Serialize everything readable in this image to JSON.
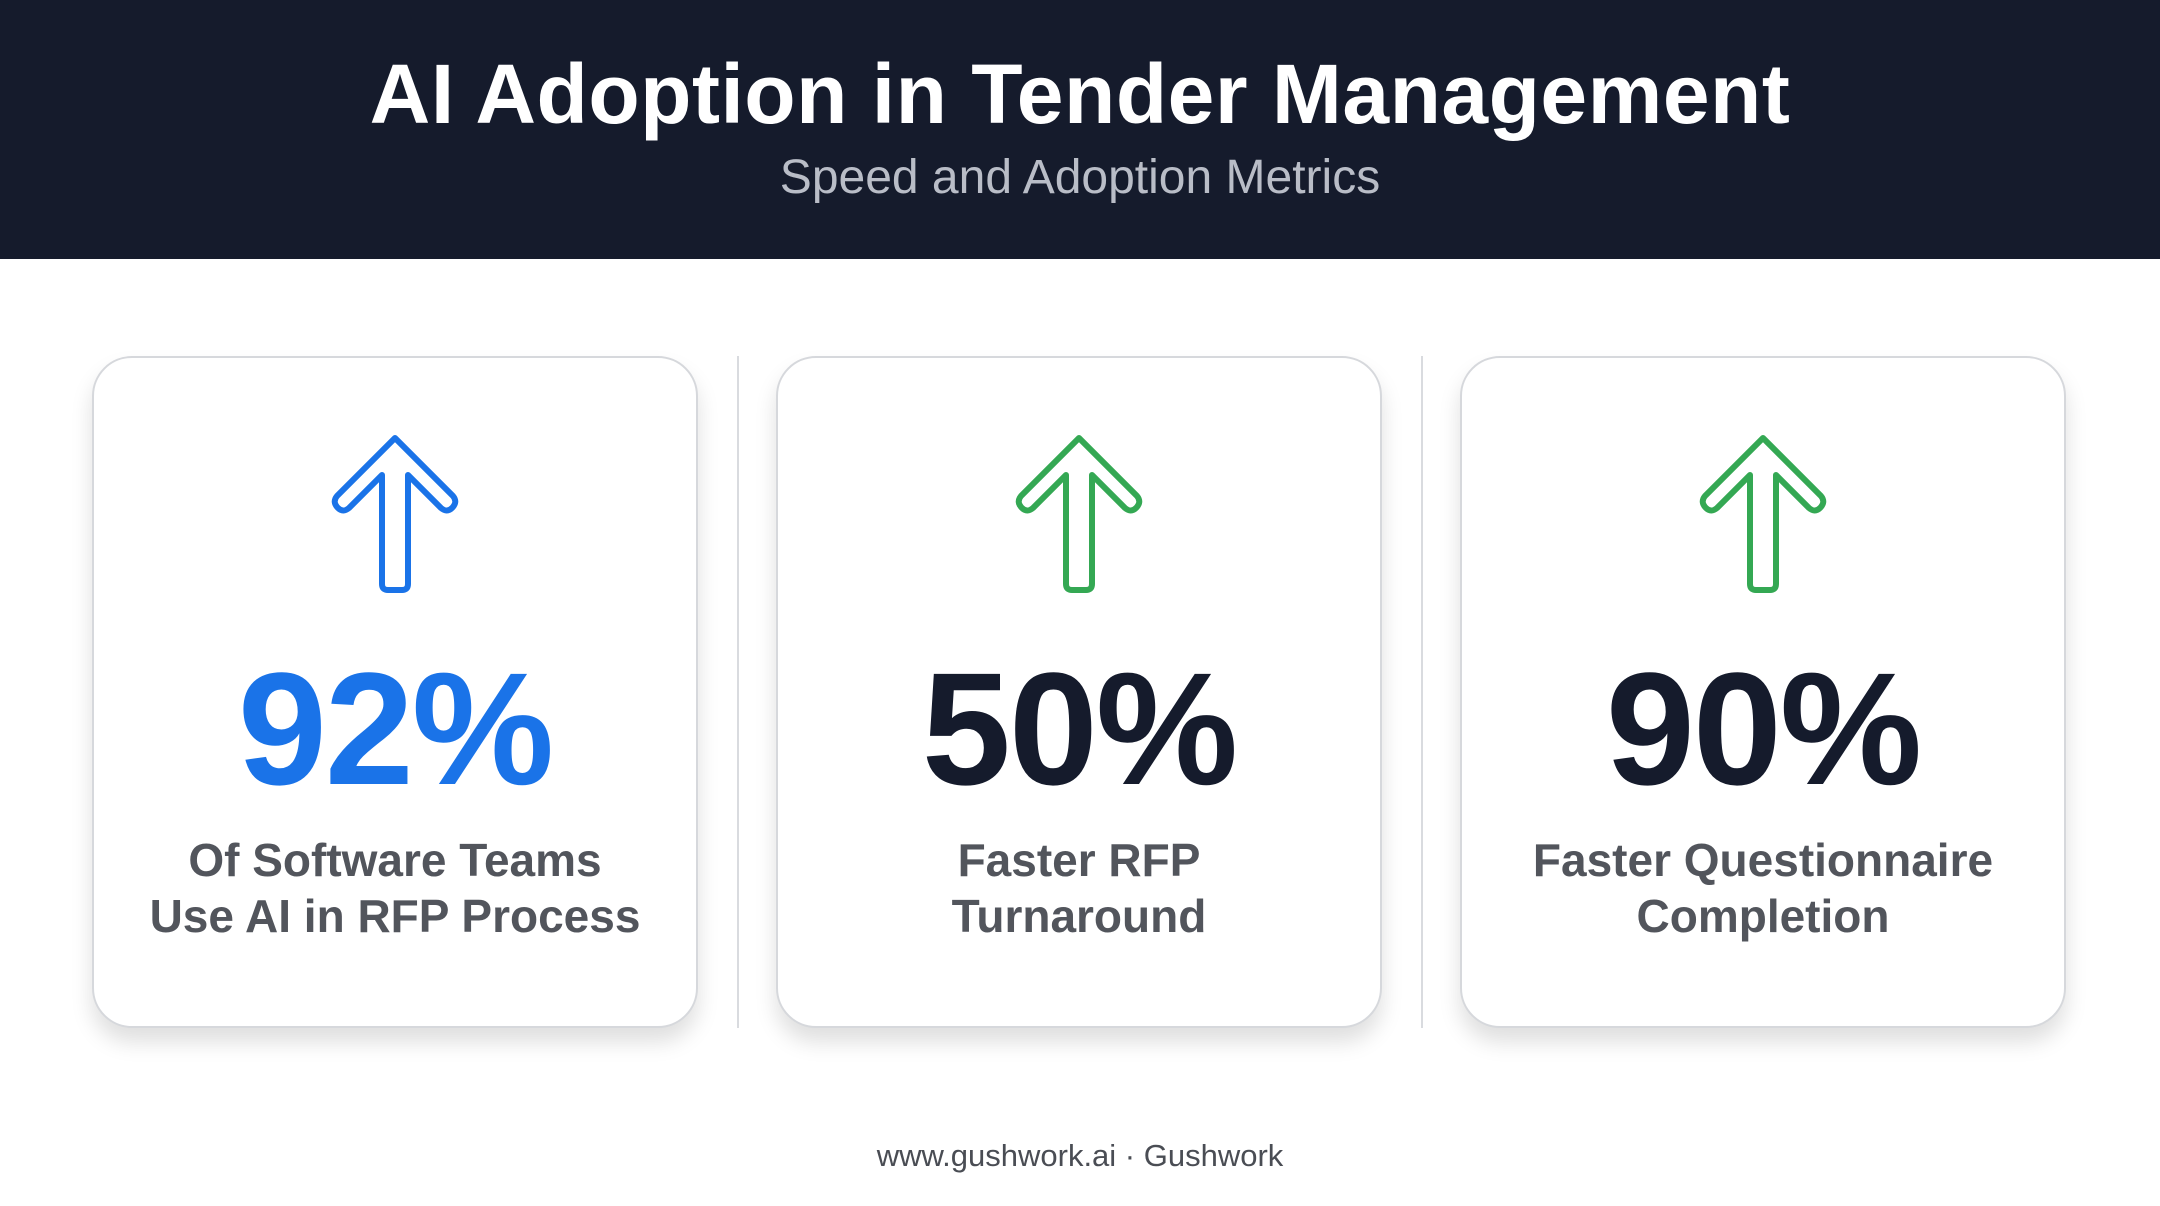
{
  "header": {
    "title": "AI Adoption in Tender Management",
    "subtitle": "Speed and Adoption Metrics"
  },
  "cards": [
    {
      "value": "92%",
      "label_line1": "Of Software Teams",
      "label_line2": "Use AI in RFP Process",
      "icon": "arrow-up-icon",
      "icon_color": "#1a73e8",
      "value_color": "#1a73e8"
    },
    {
      "value": "50%",
      "label_line1": "Faster RFP",
      "label_line2": "Turnaround",
      "icon": "arrow-up-icon",
      "icon_color": "#34a853",
      "value_color": "#151b2c"
    },
    {
      "value": "90%",
      "label_line1": "Faster Questionnaire",
      "label_line2": "Completion",
      "icon": "arrow-up-icon",
      "icon_color": "#34a853",
      "value_color": "#151b2c"
    }
  ],
  "footer": {
    "text": "www.gushwork.ai · Gushwork"
  },
  "colors": {
    "header_bg": "#151b2c",
    "accent_blue": "#1a73e8",
    "accent_green": "#34a853",
    "label_gray": "#52555c"
  }
}
